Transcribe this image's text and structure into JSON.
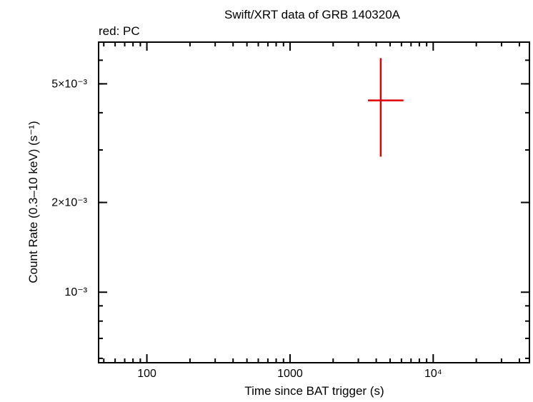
{
  "chart_data": {
    "type": "scatter",
    "title": "Swift/XRT data of GRB 140320A",
    "subtitle": "red: PC",
    "xlabel": "Time since BAT trigger (s)",
    "ylabel": "Count Rate (0.3–10 keV) (s⁻¹)",
    "xscale": "log",
    "yscale": "log",
    "xlim": [
      46,
      47000
    ],
    "ylim": [
      0.00058,
      0.0069
    ],
    "x_ticks": [
      {
        "value": 100,
        "label": "100"
      },
      {
        "value": 1000,
        "label": "1000"
      },
      {
        "value": 10000,
        "label": "10⁴"
      }
    ],
    "y_ticks": [
      {
        "value": 0.001,
        "label": "10⁻³"
      },
      {
        "value": 0.002,
        "label": "2×10⁻³"
      },
      {
        "value": 0.005,
        "label": "5×10⁻³"
      }
    ],
    "grid": false,
    "legend": "none",
    "series": [
      {
        "color": "#e00000",
        "points": [
          {
            "x": 4300,
            "y": 0.0044,
            "x_low": 3500,
            "x_high": 6200,
            "y_low": 0.00285,
            "y_high": 0.0061
          }
        ]
      }
    ]
  }
}
